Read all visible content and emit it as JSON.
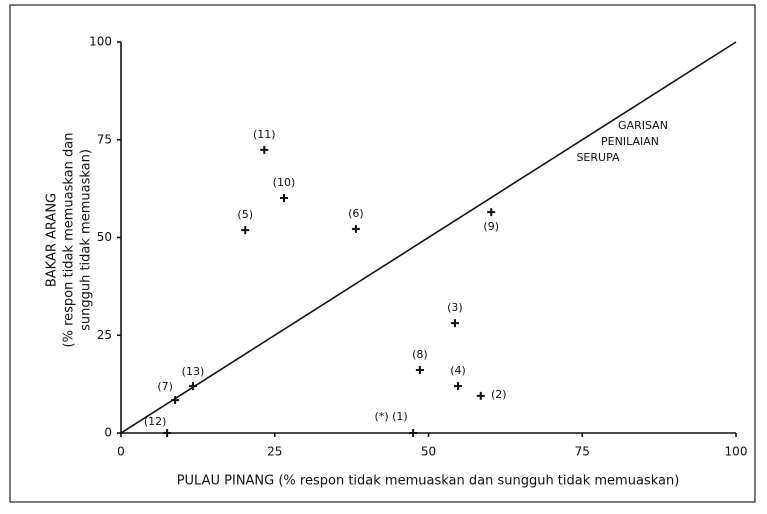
{
  "chart_data": {
    "type": "scatter",
    "x_label": "PULAU PINANG (% respon tidak memuaskan dan sungguh tidak memuaskan)",
    "y_label": [
      "BAKAR ARANG",
      "(% respon tidak memuaskan dan",
      "sungguh tidak memuaskan)"
    ],
    "xlim": [
      0,
      100
    ],
    "ylim": [
      0,
      100
    ],
    "xticks": [
      0,
      25,
      50,
      75,
      100
    ],
    "yticks": [
      0,
      25,
      50,
      75,
      100
    ],
    "series": [
      {
        "labels": [
          "(*) (1)",
          "(2)",
          "(3)",
          "(4)",
          "(5)",
          "(6)",
          "(7)",
          "(8)",
          "(9)",
          "(10)",
          "(11)",
          "(12)",
          "(13)"
        ],
        "x": [
          47.5,
          58.5,
          54.3,
          54.8,
          20.2,
          38.2,
          8.8,
          48.6,
          60.2,
          26.5,
          23.3,
          7.5,
          11.7
        ],
        "values": [
          0,
          9.5,
          28.1,
          12.0,
          51.9,
          52.2,
          8.4,
          16.1,
          56.5,
          60.1,
          72.4,
          0,
          12.0
        ],
        "color": "#111111"
      }
    ],
    "reference_line": {
      "x": [
        0,
        100
      ],
      "y": [
        0,
        100
      ],
      "label": [
        "GARISAN",
        "PENILAIAN",
        "SERUPA"
      ]
    }
  }
}
